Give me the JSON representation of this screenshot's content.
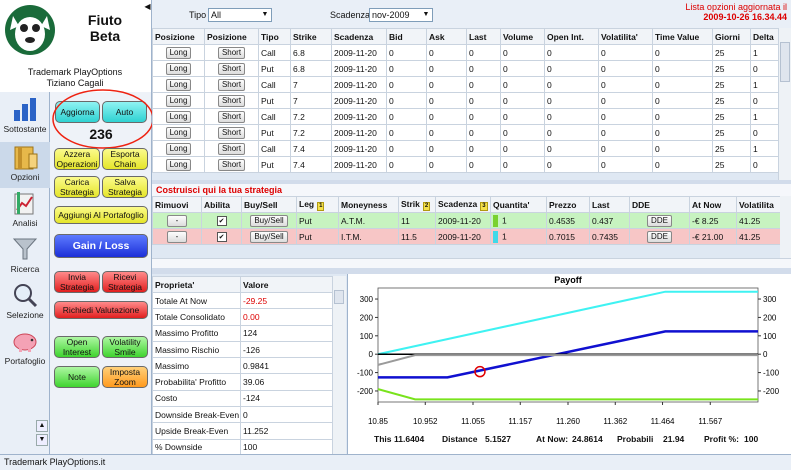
{
  "app": {
    "name_line1": "Fiuto",
    "name_line2": "Beta",
    "trademark": "Trademark PlayOptions",
    "author": "Tiziano Cagali"
  },
  "nav": [
    {
      "label": "Sottostante",
      "icon": "bar-chart-icon"
    },
    {
      "label": "Opzioni",
      "icon": "book-icon"
    },
    {
      "label": "Analisi",
      "icon": "analysis-icon"
    },
    {
      "label": "Ricerca",
      "icon": "funnel-icon"
    },
    {
      "label": "Selezione",
      "icon": "magnifier-icon"
    },
    {
      "label": "Portafoglio",
      "icon": "piggy-bank-icon"
    }
  ],
  "buttons": {
    "aggiorna": "Aggiorna",
    "auto": "Auto",
    "counter": "236",
    "azzera": "Azzera Operazioni",
    "esporta": "Esporta Chain",
    "carica": "Carica Strategia",
    "salva": "Salva Strategia",
    "aggiungi": "Aggiungi Al Portafoglio",
    "gain_loss": "Gain / Loss",
    "invia": "Invia Strategia",
    "ricevi": "Ricevi Strategia",
    "richiedi": "Richiedi Valutazione",
    "open_interest": "Open Interest",
    "volatility_smile": "Volatility Smile",
    "note": "Note",
    "imposta_zoom": "Imposta Zoom"
  },
  "filters": {
    "tipo_label": "Tipo",
    "tipo_value": "All",
    "scadenza_label": "Scadenza",
    "scadenza_value": "nov-2009",
    "update_label": "Lista opzioni aggiornata il",
    "update_value": "2009-10-26 16.34.44"
  },
  "options_table": {
    "headers": [
      "Posizione",
      "Posizione",
      "Tipo",
      "Strike",
      "Scadenza",
      "Bid",
      "Ask",
      "Last",
      "Volume",
      "Open Int.",
      "Volatilita'",
      "Time Value",
      "Giorni",
      "Delta"
    ],
    "rows": [
      [
        "Long",
        "Short",
        "Call",
        "6.8",
        "2009-11-20",
        "0",
        "0",
        "0",
        "0",
        "0",
        "0",
        "0",
        "25",
        "1"
      ],
      [
        "Long",
        "Short",
        "Put",
        "6.8",
        "2009-11-20",
        "0",
        "0",
        "0",
        "0",
        "0",
        "0",
        "0",
        "25",
        "0"
      ],
      [
        "Long",
        "Short",
        "Call",
        "7",
        "2009-11-20",
        "0",
        "0",
        "0",
        "0",
        "0",
        "0",
        "0",
        "25",
        "1"
      ],
      [
        "Long",
        "Short",
        "Put",
        "7",
        "2009-11-20",
        "0",
        "0",
        "0",
        "0",
        "0",
        "0",
        "0",
        "25",
        "0"
      ],
      [
        "Long",
        "Short",
        "Call",
        "7.2",
        "2009-11-20",
        "0",
        "0",
        "0",
        "0",
        "0",
        "0",
        "0",
        "25",
        "1"
      ],
      [
        "Long",
        "Short",
        "Put",
        "7.2",
        "2009-11-20",
        "0",
        "0",
        "0",
        "0",
        "0",
        "0",
        "0",
        "25",
        "0"
      ],
      [
        "Long",
        "Short",
        "Call",
        "7.4",
        "2009-11-20",
        "0",
        "0",
        "0",
        "0",
        "0",
        "0",
        "0",
        "25",
        "1"
      ],
      [
        "Long",
        "Short",
        "Put",
        "7.4",
        "2009-11-20",
        "0",
        "0",
        "0",
        "0",
        "0",
        "0",
        "0",
        "25",
        "0"
      ]
    ]
  },
  "strategy": {
    "header": "Costruisci qui la tua strategia",
    "columns": [
      "Rimuovi",
      "Abilita",
      "Buy/Sell",
      "Leg",
      "Moneyness",
      "Strik",
      "Scadenza",
      "Quantita'",
      "Prezzo",
      "Last",
      "DDE",
      "At Now",
      "Volatilita"
    ],
    "rows": [
      {
        "remove": "-",
        "buy_sell": "Buy/Sell",
        "leg": "Put",
        "moneyness": "A.T.M.",
        "strike": "11",
        "scadenza": "2009-11-20",
        "quantita": "1",
        "prezzo": "0.4535",
        "last": "0.437",
        "dde": "DDE",
        "at_now": "-€ 8.25",
        "volatilita": "41.25"
      },
      {
        "remove": "-",
        "buy_sell": "Buy/Sell",
        "leg": "Put",
        "moneyness": "I.T.M.",
        "strike": "11.5",
        "scadenza": "2009-11-20",
        "quantita": "1",
        "prezzo": "0.7015",
        "last": "0.7435",
        "dde": "DDE",
        "at_now": "-€ 21.00",
        "volatilita": "41.25"
      }
    ]
  },
  "properties": {
    "headers": [
      "Proprieta'",
      "Valore"
    ],
    "rows": [
      {
        "name": "Totale At Now",
        "value": "-29.25",
        "neg": true
      },
      {
        "name": "Totale Consolidato",
        "value": "0.00",
        "neg": true
      },
      {
        "name": "Massimo Profitto",
        "value": "124",
        "neg": false
      },
      {
        "name": "Massimo Rischio",
        "value": "-126",
        "neg": false
      },
      {
        "name": "Massimo",
        "value": "0.9841",
        "neg": false
      },
      {
        "name": "Probabilita' Profitto",
        "value": "39.06",
        "neg": false
      },
      {
        "name": "Costo",
        "value": "-124",
        "neg": false
      },
      {
        "name": "Downside Break-Even",
        "value": "0",
        "neg": false
      },
      {
        "name": "Upside Break-Even",
        "value": "11.252",
        "neg": false
      },
      {
        "name": "% Downside",
        "value": "100",
        "neg": false
      }
    ]
  },
  "chart_data": {
    "type": "line",
    "title": "Payoff",
    "x_ticks": [
      "10.85",
      "10.952",
      "11.055",
      "11.157",
      "11.260",
      "11.362",
      "11.464",
      "11.567"
    ],
    "xlim": [
      10.85,
      11.67
    ],
    "ylim": [
      -260,
      360
    ],
    "y_ticks_left": [
      "300",
      "200",
      "100",
      "0",
      "-100",
      "-200"
    ],
    "y_ticks_right": [
      "300",
      "200",
      "100",
      "0",
      "-100",
      "-200"
    ],
    "series": [
      {
        "color": "#3ff2f2",
        "x": [
          10.85,
          11.47,
          11.67
        ],
        "y": [
          0,
          340,
          340
        ]
      },
      {
        "color": "#1010d0",
        "x": [
          10.85,
          11.0,
          11.47,
          11.67
        ],
        "y": [
          -126,
          -126,
          124,
          124
        ]
      },
      {
        "color": "#000000",
        "x": [
          10.85,
          11.67
        ],
        "y": [
          0,
          0
        ]
      },
      {
        "color": "#9a9a9a",
        "x": [
          10.85,
          10.93,
          11.67
        ],
        "y": [
          -58,
          -5,
          -5
        ]
      },
      {
        "color": "#79e31c",
        "x": [
          10.85,
          10.93,
          11.67
        ],
        "y": [
          -190,
          -246,
          -246
        ]
      }
    ],
    "marker": {
      "x": 11.07,
      "y": -95,
      "color": "#e00000"
    },
    "footer": {
      "this_label": "This",
      "this_value": "11.6404",
      "distance_label": "Distance",
      "distance_value": "5.1527",
      "atnow_label": "At Now:",
      "atnow_value": "24.8614",
      "prob_label": "Probabili",
      "prob_value": "21.94",
      "profit_label": "Profit %:",
      "profit_value": "100"
    }
  },
  "status": "Trademark PlayOptions.it"
}
